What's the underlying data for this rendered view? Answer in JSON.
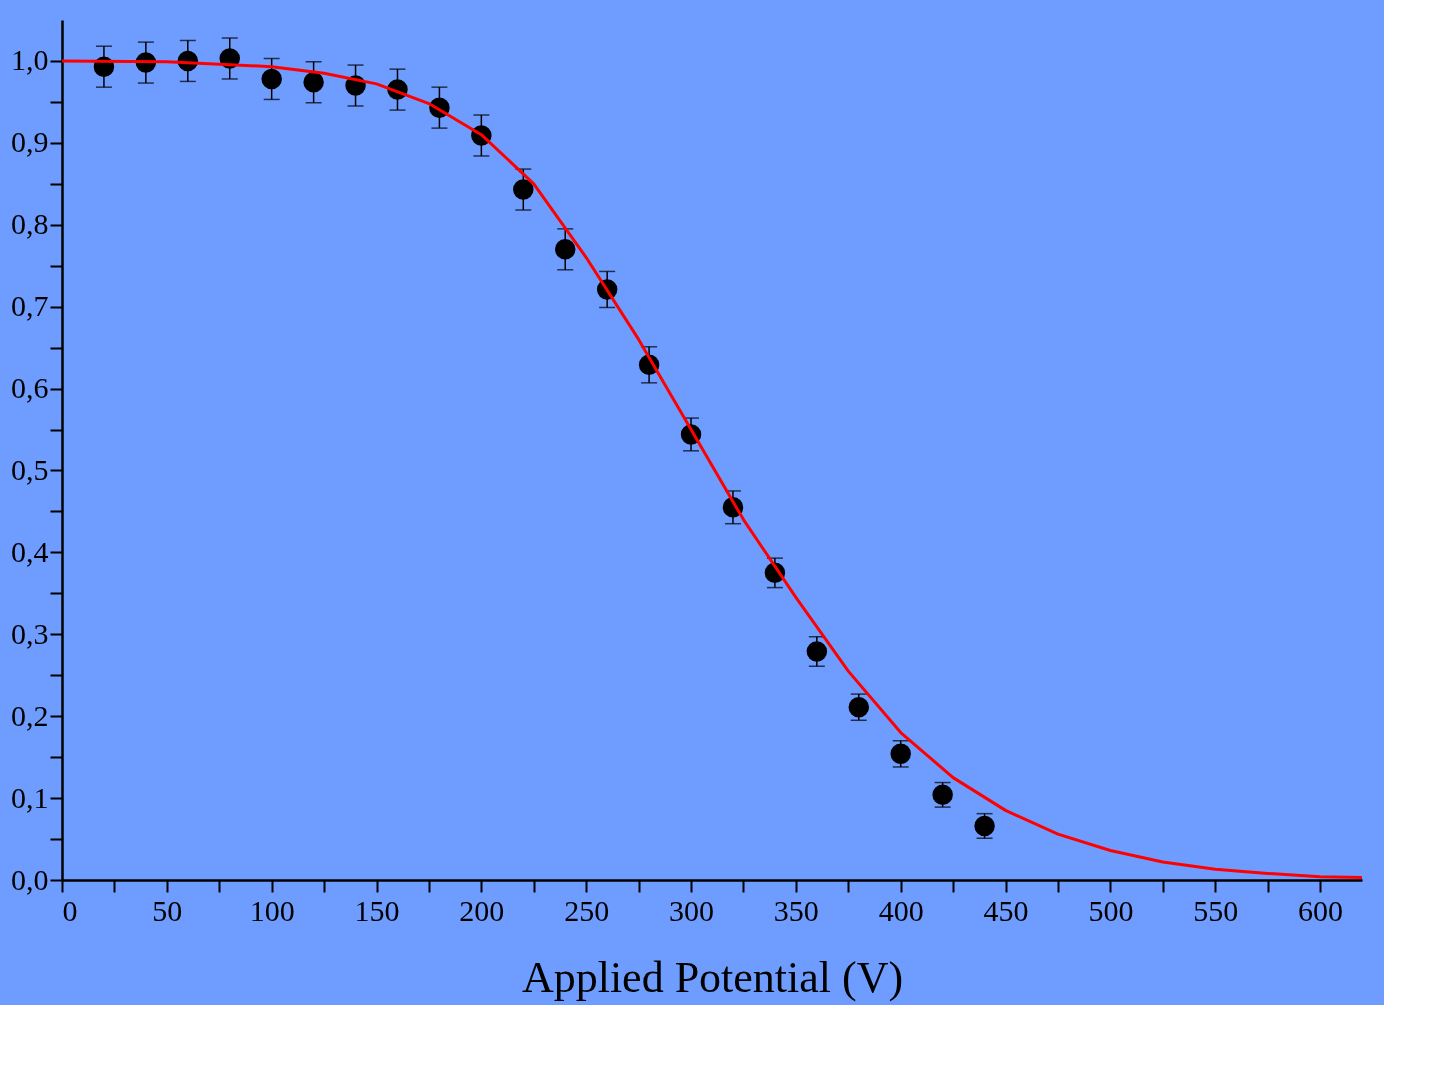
{
  "chart_data": {
    "type": "scatter",
    "xlabel": "Applied Potential (V)",
    "xlim": [
      0,
      620
    ],
    "ylim": [
      0,
      1.05
    ],
    "grid": false,
    "xticks": [
      0,
      {
        "value": 25,
        "label": null
      },
      50,
      {
        "value": 75,
        "label": null
      },
      100,
      {
        "value": 125,
        "label": null
      },
      150,
      {
        "value": 175,
        "label": null
      },
      200,
      {
        "value": 225,
        "label": null
      },
      250,
      {
        "value": 275,
        "label": null
      },
      300,
      {
        "value": 325,
        "label": null
      },
      350,
      {
        "value": 375,
        "label": null
      },
      400,
      {
        "value": 425,
        "label": null
      },
      450,
      {
        "value": 475,
        "label": null
      },
      500,
      {
        "value": 525,
        "label": null
      },
      550,
      {
        "value": 575,
        "label": null
      },
      600
    ],
    "yticks": [
      {
        "value": 0,
        "label": "0,0"
      },
      {
        "value": 0.05,
        "label": null
      },
      {
        "value": 0.1,
        "label": "0,1"
      },
      {
        "value": 0.15,
        "label": null
      },
      {
        "value": 0.2,
        "label": "0,2"
      },
      {
        "value": 0.25,
        "label": null
      },
      {
        "value": 0.3,
        "label": "0,3"
      },
      {
        "value": 0.35,
        "label": null
      },
      {
        "value": 0.4,
        "label": "0,4"
      },
      {
        "value": 0.45,
        "label": null
      },
      {
        "value": 0.5,
        "label": "0,5"
      },
      {
        "value": 0.55,
        "label": null
      },
      {
        "value": 0.6,
        "label": "0,6"
      },
      {
        "value": 0.65,
        "label": null
      },
      {
        "value": 0.7,
        "label": "0,7"
      },
      {
        "value": 0.75,
        "label": null
      },
      {
        "value": 0.8,
        "label": "0,8"
      },
      {
        "value": 0.85,
        "label": null
      },
      {
        "value": 0.9,
        "label": "0,9"
      },
      {
        "value": 0.95,
        "label": null
      },
      {
        "value": 1.0,
        "label": "1,0"
      }
    ],
    "series": [
      {
        "color": "#000000",
        "marker": "circle",
        "x": [
          20,
          40,
          60,
          80,
          100,
          120,
          140,
          160,
          180,
          200,
          220,
          240,
          260,
          280,
          300,
          320,
          340,
          360,
          380,
          400,
          420,
          440
        ],
        "values": [
          0.993,
          0.998,
          1.0,
          1.003,
          0.978,
          0.974,
          0.97,
          0.965,
          0.943,
          0.909,
          0.843,
          0.77,
          0.721,
          0.629,
          0.544,
          0.455,
          0.375,
          0.279,
          0.211,
          0.154,
          0.104,
          0.066
        ],
        "errors": [
          0.025,
          0.025,
          0.025,
          0.025,
          0.025,
          0.025,
          0.025,
          0.025,
          0.025,
          0.025,
          0.025,
          0.025,
          0.022,
          0.022,
          0.02,
          0.02,
          0.018,
          0.018,
          0.016,
          0.016,
          0.015,
          0.015
        ]
      },
      {
        "type": "line",
        "color": "#ff0000",
        "line_style": "solid",
        "x": [
          0,
          50,
          100,
          125,
          150,
          175,
          200,
          225,
          250,
          275,
          300,
          325,
          350,
          375,
          400,
          425,
          450,
          475,
          500,
          525,
          550,
          575,
          600,
          620
        ],
        "values": [
          1.0,
          0.999,
          0.993,
          0.985,
          0.972,
          0.948,
          0.91,
          0.85,
          0.76,
          0.66,
          0.55,
          0.44,
          0.345,
          0.255,
          0.18,
          0.125,
          0.085,
          0.056,
          0.036,
          0.022,
          0.013,
          0.008,
          0.004,
          0.003
        ]
      }
    ]
  }
}
